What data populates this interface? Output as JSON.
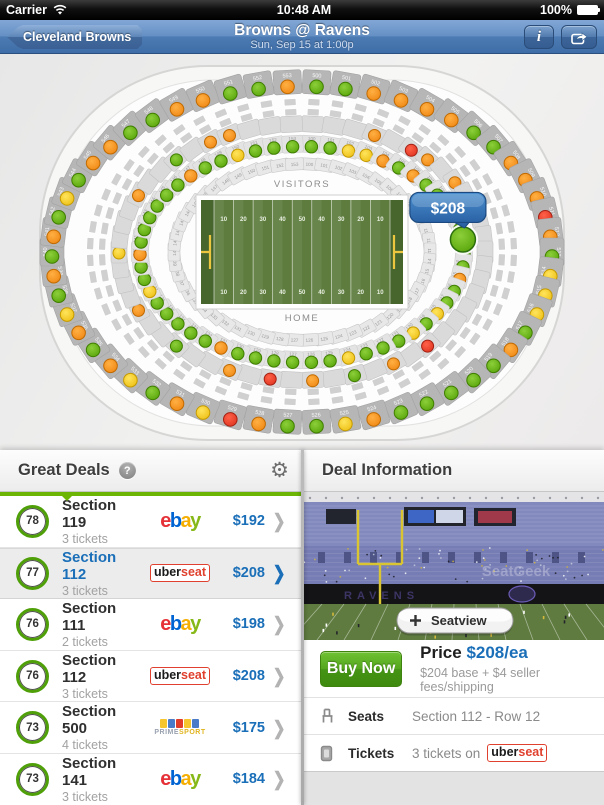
{
  "status_bar": {
    "carrier": "Carrier",
    "time": "10:48 AM",
    "battery": "100%"
  },
  "nav_bar": {
    "back_label": "Cleveland Browns",
    "title": "Browns @ Ravens",
    "subtitle": "Sun, Sep 15 at 1:00p",
    "info_label": "i"
  },
  "icons": {
    "gear": "⚙",
    "help": "?",
    "chevron": "❯"
  },
  "map": {
    "visitors_label": "VISITORS",
    "home_label": "HOME",
    "callout_price": "$208",
    "field_numbers": [
      "10",
      "20",
      "30",
      "40",
      "50",
      "40",
      "30",
      "20",
      "10"
    ],
    "selected_section_index": 12,
    "dot_colors": {
      "g": {
        "light": "#8ccf3a",
        "dark": "#58a40a",
        "stroke": "#3f7d00"
      },
      "y": {
        "light": "#ffe45c",
        "dark": "#edbf13",
        "stroke": "#c49a00"
      },
      "o": {
        "light": "#ffb043",
        "dark": "#ef8714",
        "stroke": "#c06a00"
      },
      "r": {
        "light": "#ff6149",
        "dark": "#df3420",
        "stroke": "#a32013"
      }
    },
    "rings": {
      "outer": {
        "start": 500,
        "count": 54,
        "dots": "ggooooggooorogyyygogggggoyggoryogyogoygogogygooggooggo"
      },
      "mid": {
        "count": 54,
        "dots": "...o.ro.o.o.........r.o.g.o.r.o..g..o...y...o..g.oo..."
      },
      "bowl_dots": {
        "start": 100,
        "count": 54,
        "dots": "ggyyogoggggg.ggoggygygggyggggggogggggyggoggggggoggygggg"
      },
      "bowl_labels": {
        "start": 100,
        "count": 54
      }
    }
  },
  "deals_panel": {
    "title": "Great Deals",
    "rows": [
      {
        "score": "78",
        "section": "Section 119",
        "qty": "3 tickets",
        "market": "ebay",
        "price": "$192",
        "selected": false
      },
      {
        "score": "77",
        "section": "Section 112",
        "qty": "3 tickets",
        "market": "uberseat",
        "price": "$208",
        "selected": true
      },
      {
        "score": "76",
        "section": "Section 111",
        "qty": "2 tickets",
        "market": "ebay",
        "price": "$198",
        "selected": false
      },
      {
        "score": "76",
        "section": "Section 112",
        "qty": "3 tickets",
        "market": "uberseat",
        "price": "$208",
        "selected": false
      },
      {
        "score": "73",
        "section": "Section 500",
        "qty": "4 tickets",
        "market": "primesport",
        "price": "$175",
        "selected": false
      },
      {
        "score": "73",
        "section": "Section 141",
        "qty": "3 tickets",
        "market": "ebay",
        "price": "$184",
        "selected": false
      }
    ]
  },
  "markets": {
    "ebay": {
      "letters": [
        [
          "e",
          "#e53238"
        ],
        [
          "b",
          "#0064d2"
        ],
        [
          "a",
          "#f5af02"
        ],
        [
          "y",
          "#86b817"
        ]
      ]
    },
    "uberseat": {
      "parts": [
        [
          "uber",
          "#1a1a1a"
        ],
        [
          "seat",
          "#e0402e"
        ]
      ],
      "border": "#e0402e"
    },
    "primesport": {
      "tiles": [
        "#f7c52c",
        "#4a7bc8",
        "#e23b27",
        "#f7c52c",
        "#4a7bc8"
      ],
      "text_parts": [
        [
          "PRIME",
          "#9aa2b0"
        ],
        [
          "SPORT",
          "#e0b41f"
        ]
      ]
    }
  },
  "deal_info": {
    "title": "Deal Information",
    "seatview_label": "Seatview",
    "watermark": "SeatGeek",
    "buy_label": "Buy Now",
    "price_label": "Price",
    "price_value": "$208/ea",
    "price_sub": "$204 base + $4 seller fees/shipping",
    "seats_label": "Seats",
    "seats_value": "Section 112 - Row 12",
    "tickets_label": "Tickets",
    "tickets_value": "3 tickets on",
    "tickets_market": "uberseat"
  }
}
